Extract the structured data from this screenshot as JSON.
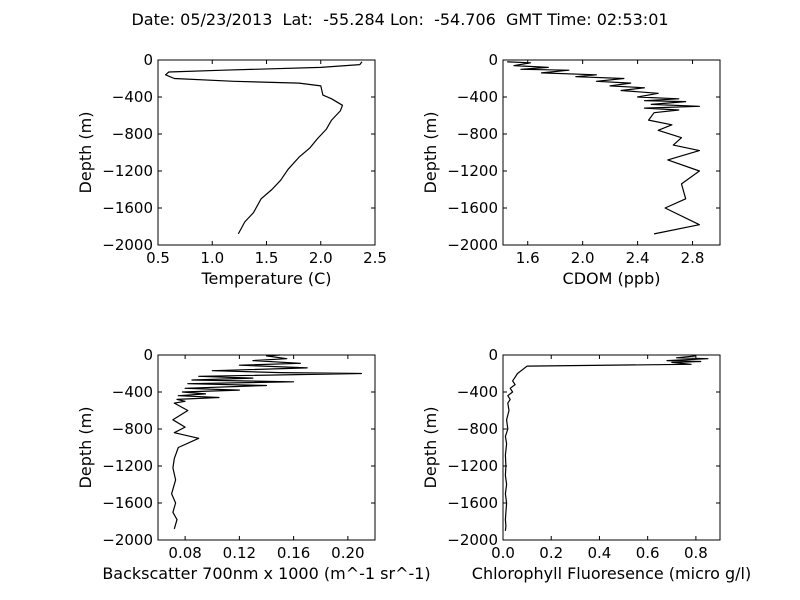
{
  "figure": {
    "title": "Date: 05/23/2013  Lat:  -55.284 Lon:  -54.706  GMT Time: 02:53:01"
  },
  "chart_data": [
    {
      "type": "line",
      "xlabel": "Temperature (C)",
      "ylabel": "Depth (m)",
      "xlim": [
        0.5,
        2.5
      ],
      "ylim": [
        -2000,
        0
      ],
      "xticks": [
        0.5,
        1.0,
        1.5,
        2.0,
        2.5
      ],
      "xtick_labels": [
        "0.5",
        "1.0",
        "1.5",
        "2.0",
        "2.5"
      ],
      "yticks": [
        0,
        -400,
        -800,
        -1200,
        -1600,
        -2000
      ],
      "ytick_labels": [
        "0",
        "−400",
        "−800",
        "−1200",
        "−1600",
        "−2000"
      ],
      "grid": false,
      "series": [
        {
          "x": [
            2.38,
            2.36,
            2.0,
            1.1,
            0.6,
            0.57,
            0.65,
            1.2,
            1.8,
            2.0,
            2.02,
            2.1,
            2.2,
            2.18,
            2.1,
            2.05,
            1.97,
            1.9,
            1.8,
            1.7,
            1.63,
            1.55,
            1.45,
            1.38,
            1.3,
            1.24
          ],
          "y": [
            -20,
            -50,
            -80,
            -110,
            -130,
            -160,
            -200,
            -230,
            -250,
            -280,
            -380,
            -420,
            -490,
            -550,
            -650,
            -750,
            -850,
            -950,
            -1050,
            -1180,
            -1300,
            -1400,
            -1500,
            -1650,
            -1750,
            -1880
          ]
        }
      ]
    },
    {
      "type": "line",
      "xlabel": "CDOM (ppb)",
      "ylabel": "Depth (m)",
      "xlim": [
        1.42,
        3.0
      ],
      "ylim": [
        -2000,
        0
      ],
      "xticks": [
        1.6,
        2.0,
        2.4,
        2.8
      ],
      "xtick_labels": [
        "1.6",
        "2.0",
        "2.4",
        "2.8"
      ],
      "yticks": [
        0,
        -400,
        -800,
        -1200,
        -1600,
        -2000
      ],
      "ytick_labels": [
        "0",
        "−400",
        "−800",
        "−1200",
        "−1600",
        "−2000"
      ],
      "grid": false,
      "series": [
        {
          "x": [
            1.45,
            1.62,
            1.5,
            1.75,
            1.55,
            1.9,
            1.7,
            2.1,
            1.95,
            2.3,
            2.1,
            2.35,
            2.2,
            2.45,
            2.28,
            2.55,
            2.4,
            2.7,
            2.45,
            2.75,
            2.5,
            2.85,
            2.45,
            2.7,
            2.52,
            2.48,
            2.65,
            2.55,
            2.72,
            2.66,
            2.85,
            2.62,
            2.85,
            2.72,
            2.75,
            2.6,
            2.85,
            2.52
          ],
          "y": [
            -20,
            -30,
            -60,
            -80,
            -100,
            -110,
            -140,
            -160,
            -180,
            -200,
            -230,
            -250,
            -280,
            -300,
            -330,
            -360,
            -400,
            -420,
            -440,
            -450,
            -480,
            -500,
            -520,
            -540,
            -570,
            -650,
            -700,
            -760,
            -840,
            -920,
            -980,
            -1080,
            -1200,
            -1340,
            -1500,
            -1600,
            -1780,
            -1880
          ]
        }
      ]
    },
    {
      "type": "line",
      "xlabel": "Backscatter 700nm x 1000 (m^-1 sr^-1)",
      "ylabel": "Depth (m)",
      "xlim": [
        0.06,
        0.22
      ],
      "ylim": [
        -2000,
        0
      ],
      "xticks": [
        0.08,
        0.12,
        0.16,
        0.2
      ],
      "xtick_labels": [
        "0.08",
        "0.12",
        "0.16",
        "0.20"
      ],
      "yticks": [
        0,
        -400,
        -800,
        -1200,
        -1600,
        -2000
      ],
      "ytick_labels": [
        "0",
        "−400",
        "−800",
        "−1200",
        "−1600",
        "−2000"
      ],
      "grid": false,
      "series": [
        {
          "x": [
            0.15,
            0.14,
            0.155,
            0.13,
            0.165,
            0.12,
            0.17,
            0.1,
            0.15,
            0.21,
            0.09,
            0.13,
            0.085,
            0.16,
            0.082,
            0.14,
            0.08,
            0.12,
            0.078,
            0.095,
            0.075,
            0.105,
            0.074,
            0.08,
            0.072,
            0.082,
            0.071,
            0.08,
            0.072,
            0.09,
            0.075,
            0.072,
            0.071,
            0.073,
            0.07,
            0.073,
            0.071,
            0.074,
            0.072
          ],
          "y": [
            0,
            -10,
            -40,
            -60,
            -90,
            -110,
            -140,
            -170,
            -190,
            -200,
            -230,
            -250,
            -270,
            -290,
            -310,
            -330,
            -360,
            -380,
            -400,
            -420,
            -440,
            -460,
            -480,
            -500,
            -520,
            -600,
            -700,
            -780,
            -840,
            -900,
            -1000,
            -1120,
            -1220,
            -1350,
            -1500,
            -1600,
            -1700,
            -1780,
            -1880
          ]
        }
      ]
    },
    {
      "type": "line",
      "xlabel": "Chlorophyll Fluoresence (micro g/l)",
      "ylabel": "Depth (m)",
      "xlim": [
        0.0,
        0.9
      ],
      "ylim": [
        -2000,
        0
      ],
      "xticks": [
        0.0,
        0.2,
        0.4,
        0.6,
        0.8
      ],
      "xtick_labels": [
        "0.0",
        "0.2",
        "0.4",
        "0.6",
        "0.8"
      ],
      "yticks": [
        0,
        -400,
        -800,
        -1200,
        -1600,
        -2000
      ],
      "ytick_labels": [
        "0",
        "−400",
        "−800",
        "−1200",
        "−1600",
        "−2000"
      ],
      "grid": false,
      "series": [
        {
          "x": [
            0.8,
            0.72,
            0.85,
            0.68,
            0.82,
            0.7,
            0.78,
            0.1,
            0.08,
            0.06,
            0.05,
            0.04,
            0.05,
            0.03,
            0.04,
            0.02,
            0.03,
            0.02,
            0.025,
            0.015,
            0.02,
            0.01,
            0.015,
            0.01,
            0.012,
            0.01,
            0.015,
            0.01,
            0.015,
            0.012,
            0.01,
            0.012,
            0.01
          ],
          "y": [
            -10,
            -30,
            -40,
            -60,
            -70,
            -80,
            -100,
            -120,
            -160,
            -200,
            -240,
            -280,
            -320,
            -360,
            -400,
            -440,
            -480,
            -520,
            -600,
            -700,
            -800,
            -880,
            -960,
            -1080,
            -1200,
            -1300,
            -1400,
            -1500,
            -1600,
            -1700,
            -1780,
            -1850,
            -1900
          ]
        }
      ]
    }
  ]
}
